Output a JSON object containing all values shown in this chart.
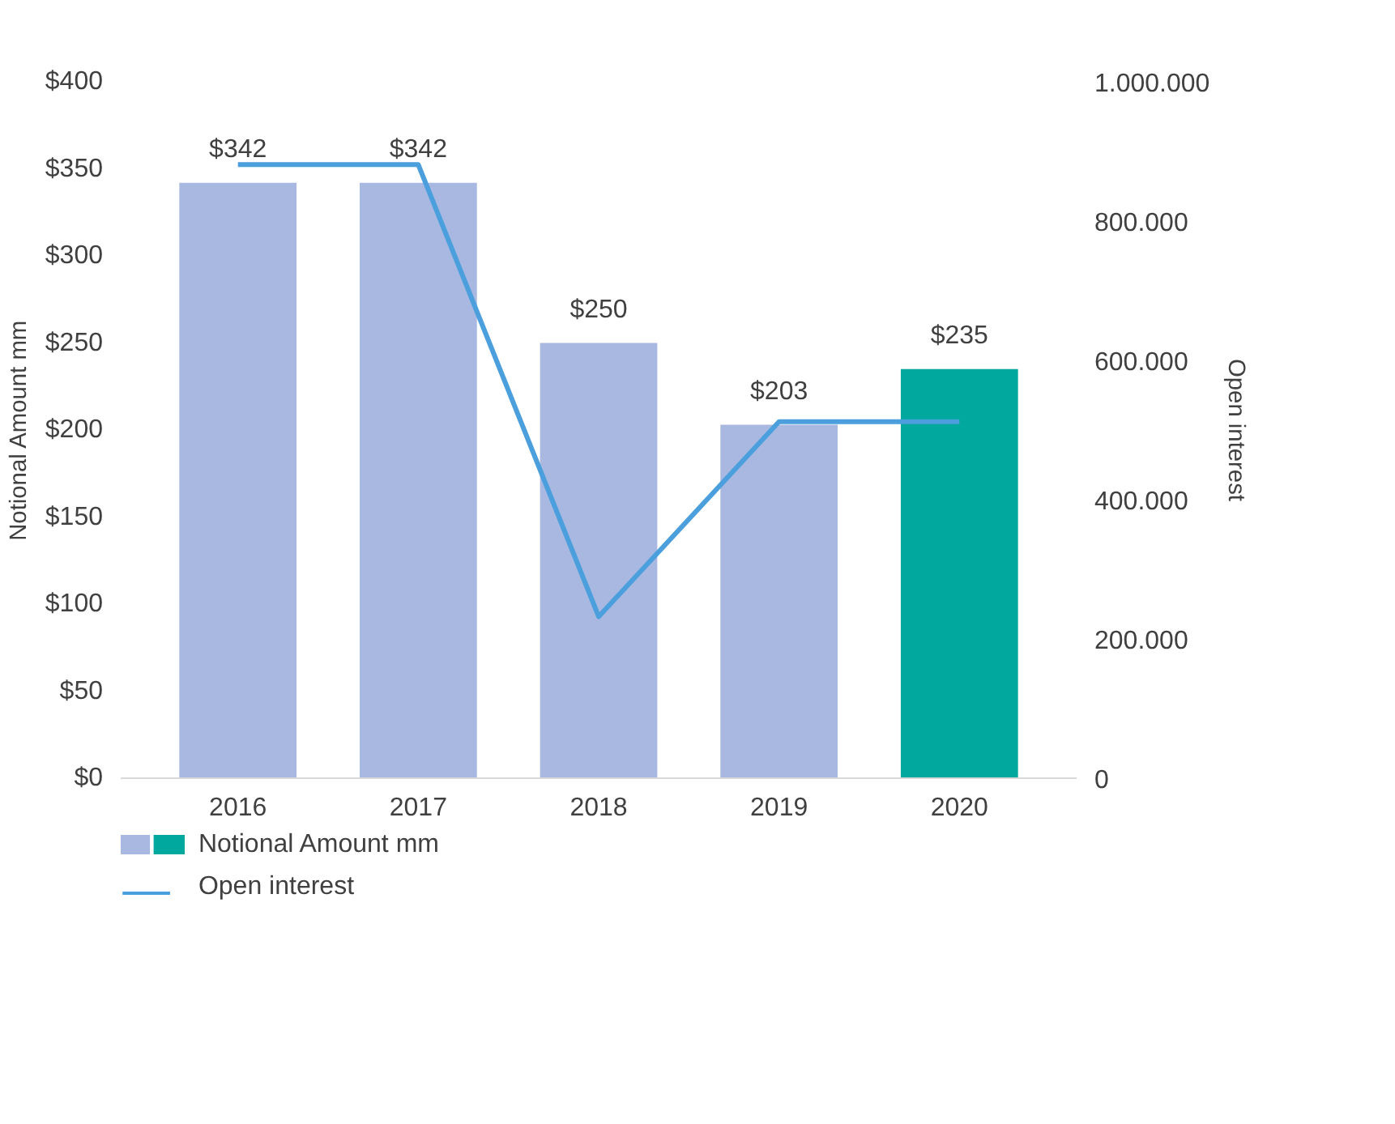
{
  "chart_data": {
    "type": "bar",
    "categories": [
      "2016",
      "2017",
      "2018",
      "2019",
      "2020"
    ],
    "ylabel": "Notional Amount mm",
    "y2label": "Open interest",
    "series": [
      {
        "name": "Notional Amount mm",
        "colors": [
          "#a9b8e0",
          "#a9b8e0",
          "#a9b8e0",
          "#a9b8e0",
          "#00a89d"
        ],
        "values": [
          342,
          342,
          250,
          203,
          235
        ],
        "value_labels": [
          "$342",
          "$342",
          "$250",
          "$203",
          "$235"
        ]
      },
      {
        "name": "Open interest",
        "type": "line",
        "axis": "y2",
        "color": "#4a9fdc",
        "values": [
          881000,
          881000,
          232000,
          512000,
          512000
        ]
      }
    ],
    "ylim": [
      0,
      400
    ],
    "yticks": [
      {
        "value": 0,
        "label": "$0"
      },
      {
        "value": 50,
        "label": "$50"
      },
      {
        "value": 100,
        "label": "$100"
      },
      {
        "value": 150,
        "label": "$150"
      },
      {
        "value": 200,
        "label": "$200"
      },
      {
        "value": 250,
        "label": "$250"
      },
      {
        "value": 300,
        "label": "$300"
      },
      {
        "value": 350,
        "label": "$350"
      },
      {
        "value": 400,
        "label": "$400"
      }
    ],
    "y2lim": [
      0,
      1000000
    ],
    "y2ticks": [
      {
        "value": 0,
        "label": "0"
      },
      {
        "value": 200000,
        "label": "200.000"
      },
      {
        "value": 400000,
        "label": "400.000"
      },
      {
        "value": 600000,
        "label": "600.000"
      },
      {
        "value": 800000,
        "label": "800.000"
      },
      {
        "value": 1000000,
        "label": "1.000.000"
      }
    ],
    "grid": false,
    "legend": "bottom left",
    "marker": "none",
    "line_style": "solid"
  }
}
